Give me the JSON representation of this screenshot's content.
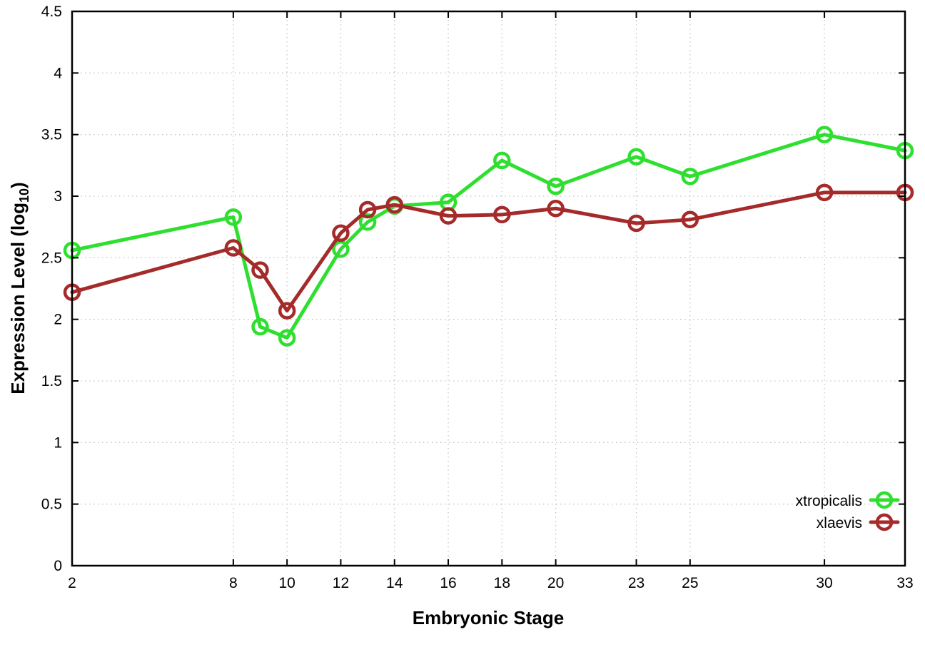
{
  "chart_data": {
    "type": "line",
    "title": "",
    "xlabel": "Embryonic Stage",
    "ylabel": "Expression Level (log10)",
    "ylabel_parts": {
      "pre": "Expression Level (log",
      "sub": "10",
      "post": ")"
    },
    "x": [
      2,
      8,
      9,
      10,
      12,
      13,
      14,
      16,
      18,
      20,
      23,
      25,
      30,
      33
    ],
    "series": [
      {
        "name": "xtropicalis",
        "color": "#2fdf2f",
        "values": [
          2.56,
          2.83,
          1.94,
          1.85,
          2.57,
          2.79,
          2.92,
          2.95,
          3.29,
          3.08,
          3.32,
          3.16,
          3.5,
          3.37
        ]
      },
      {
        "name": "xlaevis",
        "color": "#a52a2a",
        "values": [
          2.22,
          2.58,
          2.4,
          2.07,
          2.7,
          2.89,
          2.93,
          2.84,
          2.85,
          2.9,
          2.78,
          2.81,
          3.03,
          3.03
        ]
      }
    ],
    "xlim": [
      2,
      33
    ],
    "ylim": [
      0,
      4.5
    ],
    "xticks": [
      2,
      8,
      10,
      12,
      14,
      16,
      18,
      20,
      23,
      25,
      30,
      33
    ],
    "xtick_labels": [
      "2",
      "8",
      "10",
      "12",
      "14",
      "16",
      "18",
      "20",
      "23",
      "25",
      "30",
      "33"
    ],
    "yticks": [
      0,
      0.5,
      1,
      1.5,
      2,
      2.5,
      3,
      3.5,
      4,
      4.5
    ],
    "ytick_labels": [
      "0",
      "0.5",
      "1",
      "1.5",
      "2",
      "2.5",
      "3",
      "3.5",
      "4",
      "4.5"
    ],
    "grid": true,
    "legend_position": "bottom-right",
    "legend_entries": [
      "xtropicalis",
      "xlaevis"
    ]
  },
  "colors": {
    "background": "#ffffff",
    "border": "#000000",
    "grid": "#c4c4c4",
    "text": "#000000",
    "xtropicalis": "#2fdf2f",
    "xlaevis": "#a52a2a"
  }
}
